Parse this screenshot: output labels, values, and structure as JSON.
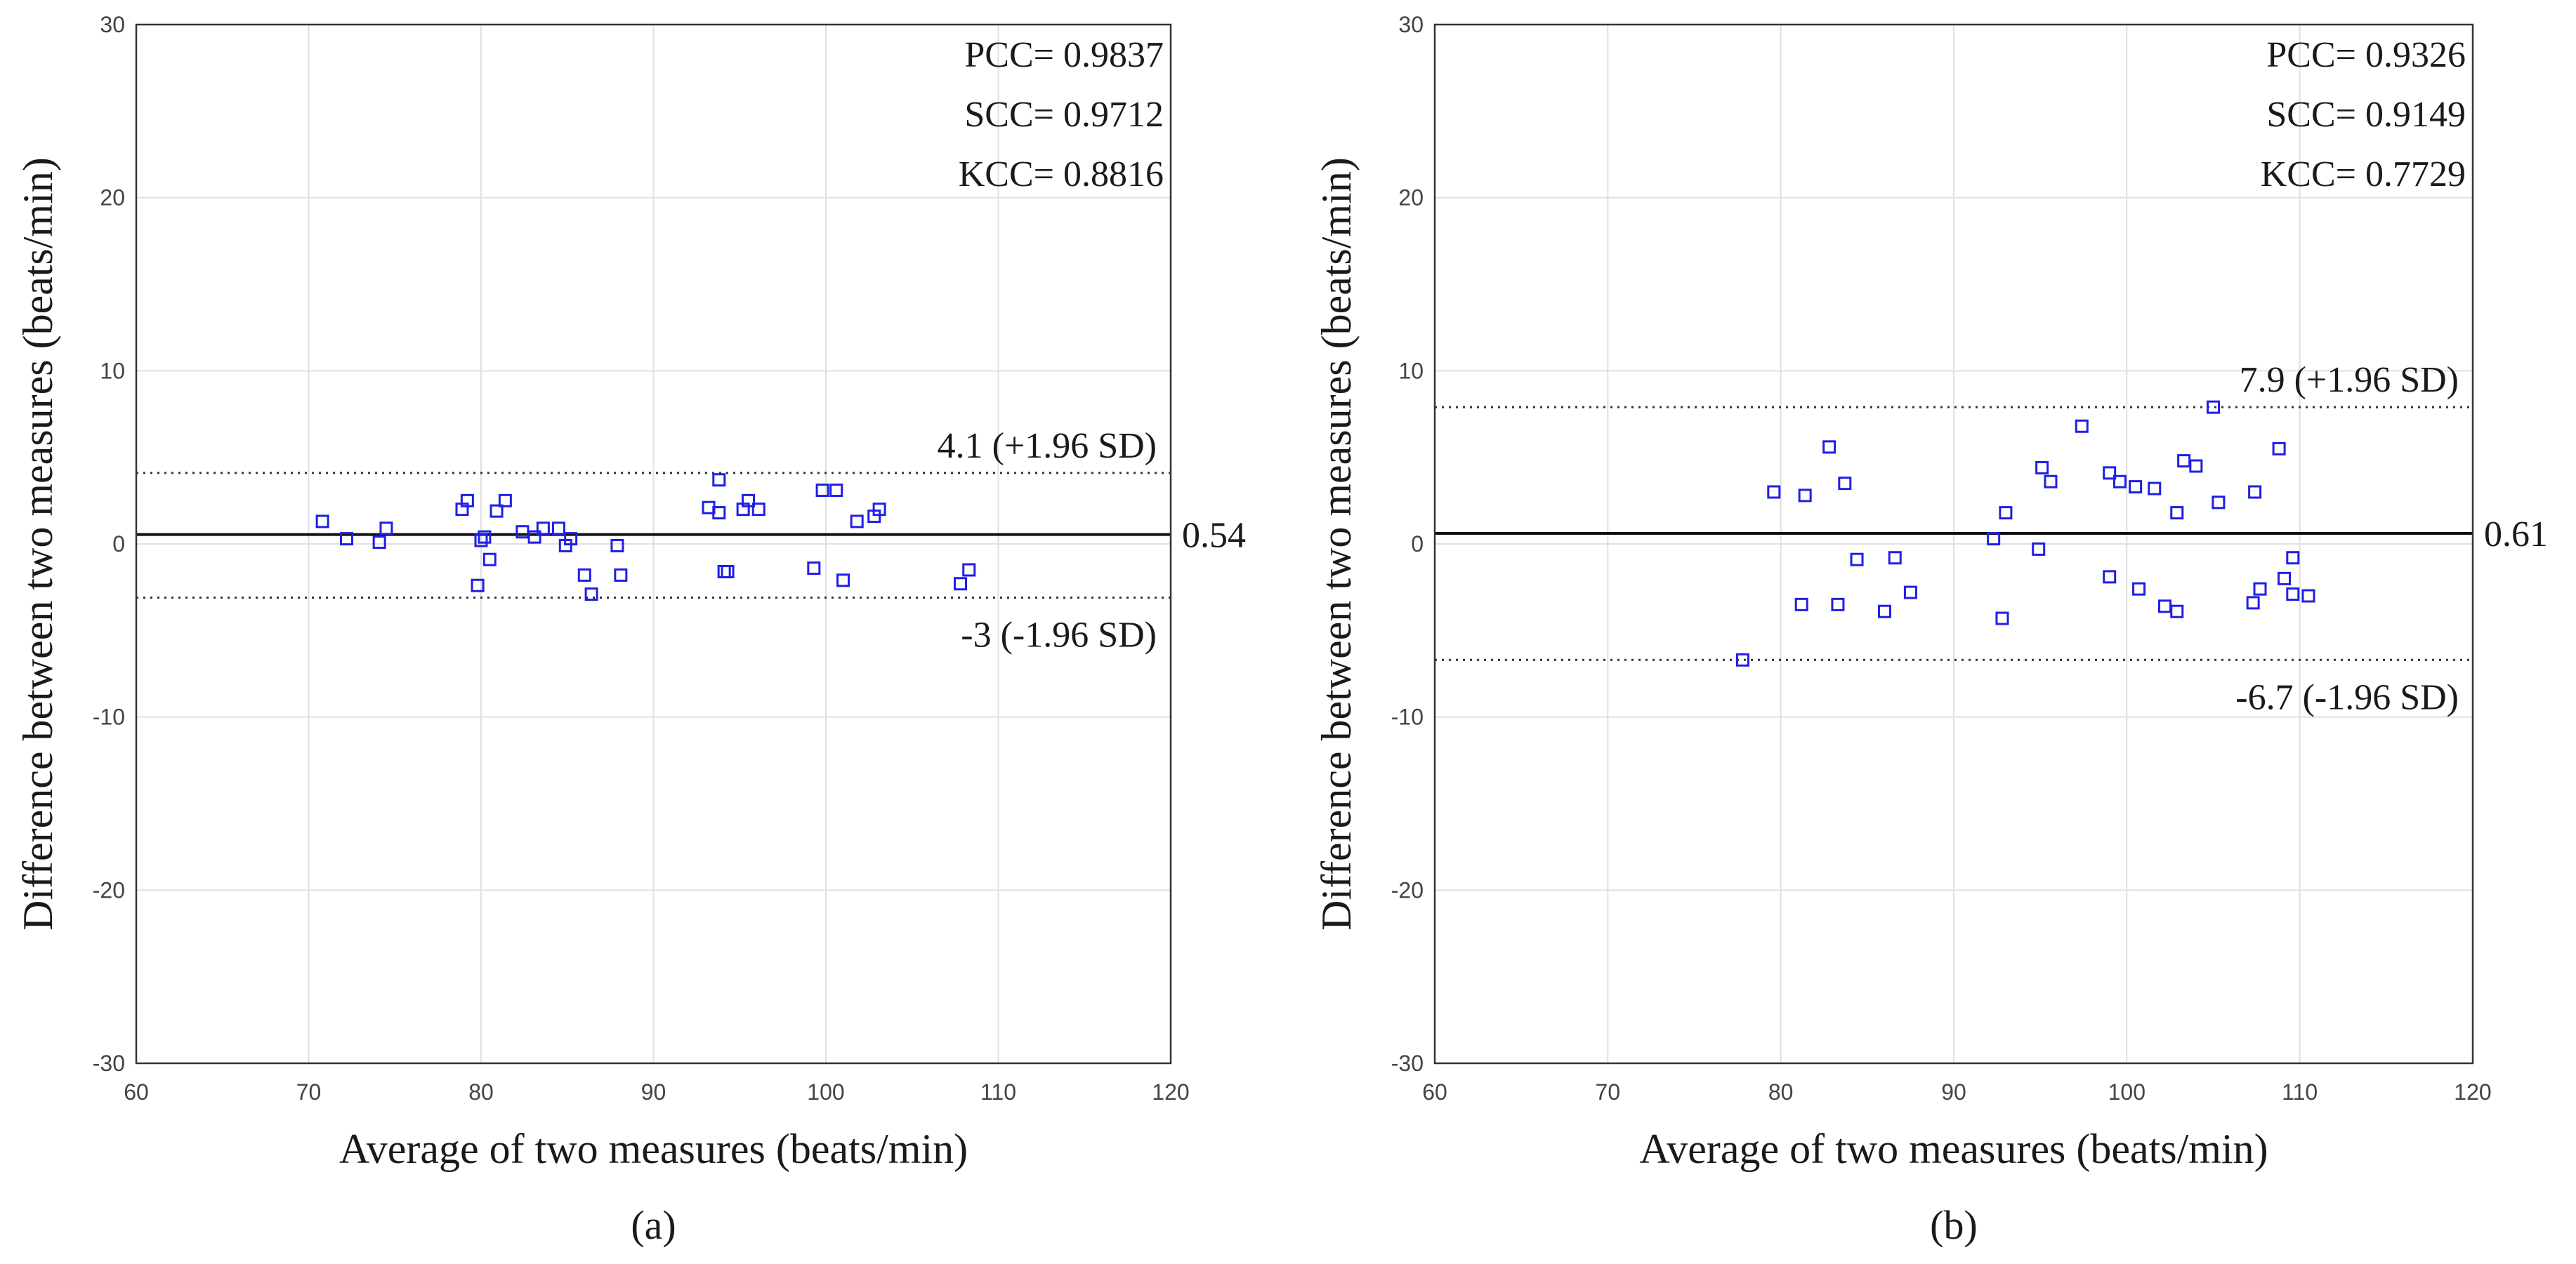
{
  "chart_data": [
    {
      "type": "scatter",
      "panel_caption": "(a)",
      "title": "",
      "xlabel": "Average of two measures (beats/min)",
      "ylabel": "Difference between two measures (beats/min)",
      "xlim": [
        60,
        120
      ],
      "ylim": [
        -30,
        30
      ],
      "xticks": [
        60,
        70,
        80,
        90,
        100,
        110,
        120
      ],
      "yticks": [
        -30,
        -20,
        -10,
        0,
        10,
        20,
        30
      ],
      "grid": true,
      "stats": [
        "PCC= 0.9837",
        "SCC= 0.9712",
        "KCC= 0.8816"
      ],
      "mean": {
        "value": 0.54,
        "label": "0.54"
      },
      "upper_loa": {
        "value": 4.1,
        "label": "4.1 (+1.96 SD)"
      },
      "lower_loa": {
        "value": -3.1,
        "label": "-3 (-1.96 SD)"
      },
      "marker_color": "#1f1fe6",
      "points": [
        [
          70.8,
          1.3
        ],
        [
          72.2,
          0.3
        ],
        [
          74.1,
          0.1
        ],
        [
          74.5,
          0.9
        ],
        [
          78.9,
          2.0
        ],
        [
          79.2,
          2.5
        ],
        [
          79.8,
          -2.4
        ],
        [
          80.0,
          0.2
        ],
        [
          80.2,
          0.4
        ],
        [
          80.5,
          -0.9
        ],
        [
          80.9,
          1.9
        ],
        [
          81.4,
          2.5
        ],
        [
          82.4,
          0.7
        ],
        [
          83.1,
          0.4
        ],
        [
          83.6,
          0.9
        ],
        [
          84.5,
          0.9
        ],
        [
          84.9,
          -0.1
        ],
        [
          85.2,
          0.3
        ],
        [
          86.0,
          -1.8
        ],
        [
          86.4,
          -2.9
        ],
        [
          87.9,
          -0.1
        ],
        [
          88.1,
          -1.8
        ],
        [
          93.2,
          2.1
        ],
        [
          93.8,
          3.7
        ],
        [
          93.8,
          1.8
        ],
        [
          94.1,
          -1.6
        ],
        [
          94.3,
          -1.6
        ],
        [
          95.2,
          2.0
        ],
        [
          95.5,
          2.5
        ],
        [
          96.1,
          2.0
        ],
        [
          99.3,
          -1.4
        ],
        [
          99.8,
          3.1
        ],
        [
          100.6,
          3.1
        ],
        [
          101.0,
          -2.1
        ],
        [
          101.8,
          1.3
        ],
        [
          102.8,
          1.6
        ],
        [
          103.1,
          2.0
        ],
        [
          107.8,
          -2.3
        ],
        [
          108.3,
          -1.5
        ]
      ]
    },
    {
      "type": "scatter",
      "panel_caption": "(b)",
      "title": "",
      "xlabel": "Average of two measures (beats/min)",
      "ylabel": "Difference between two measures (beats/min)",
      "xlim": [
        60,
        120
      ],
      "ylim": [
        -30,
        30
      ],
      "xticks": [
        60,
        70,
        80,
        90,
        100,
        110,
        120
      ],
      "yticks": [
        -30,
        -20,
        -10,
        0,
        10,
        20,
        30
      ],
      "grid": true,
      "stats": [
        "PCC= 0.9326",
        "SCC= 0.9149",
        "KCC= 0.7729"
      ],
      "mean": {
        "value": 0.61,
        "label": "0.61"
      },
      "upper_loa": {
        "value": 7.9,
        "label": "7.9 (+1.96 SD)"
      },
      "lower_loa": {
        "value": -6.7,
        "label": "-6.7 (-1.96 SD)"
      },
      "marker_color": "#1f1fe6",
      "points": [
        [
          77.8,
          -6.7
        ],
        [
          79.6,
          3.0
        ],
        [
          81.2,
          -3.5
        ],
        [
          81.4,
          2.8
        ],
        [
          82.8,
          5.6
        ],
        [
          83.3,
          -3.5
        ],
        [
          83.7,
          3.5
        ],
        [
          84.4,
          -0.9
        ],
        [
          86.0,
          -3.9
        ],
        [
          86.6,
          -0.8
        ],
        [
          87.5,
          -2.8
        ],
        [
          92.3,
          0.3
        ],
        [
          92.8,
          -4.3
        ],
        [
          93.0,
          1.8
        ],
        [
          94.9,
          -0.3
        ],
        [
          95.1,
          4.4
        ],
        [
          95.6,
          3.6
        ],
        [
          97.4,
          6.8
        ],
        [
          99.0,
          4.1
        ],
        [
          99.0,
          -1.9
        ],
        [
          99.6,
          3.6
        ],
        [
          100.5,
          3.3
        ],
        [
          100.7,
          -2.6
        ],
        [
          101.6,
          3.2
        ],
        [
          102.2,
          -3.6
        ],
        [
          102.9,
          -3.9
        ],
        [
          102.9,
          1.8
        ],
        [
          103.3,
          4.8
        ],
        [
          104.0,
          4.5
        ],
        [
          105.0,
          7.9
        ],
        [
          105.3,
          2.4
        ],
        [
          107.4,
          3.0
        ],
        [
          107.3,
          -3.4
        ],
        [
          107.7,
          -2.6
        ],
        [
          108.8,
          5.5
        ],
        [
          109.1,
          -2.0
        ],
        [
          109.6,
          -2.9
        ],
        [
          109.6,
          -0.8
        ],
        [
          110.5,
          -3.0
        ]
      ]
    }
  ]
}
